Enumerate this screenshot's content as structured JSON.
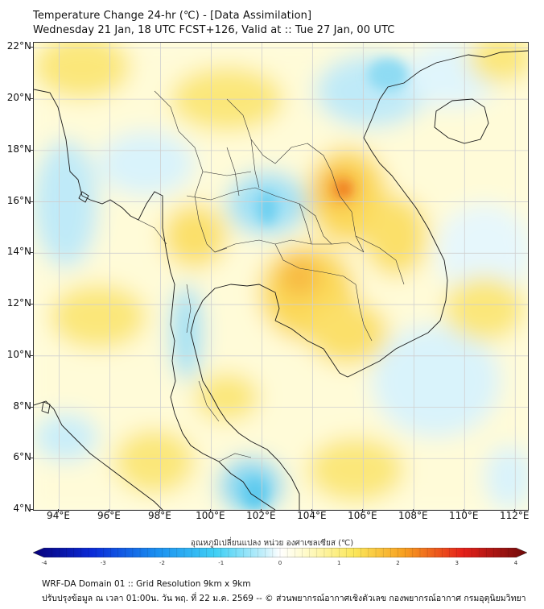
{
  "title": {
    "line1": "Temperature Change 24-hr (℃) - [Data Assimilation]",
    "line2": "Wednesday 21 Jan, 18 UTC FCST+126, Valid at :: Tue 27 Jan, 00 UTC"
  },
  "map": {
    "lat_labels": [
      "22°N",
      "20°N",
      "18°N",
      "16°N",
      "14°N",
      "12°N",
      "10°N",
      "8°N",
      "6°N",
      "4°N"
    ],
    "lon_labels": [
      "94°E",
      "96°E",
      "98°E",
      "100°E",
      "102°E",
      "104°E",
      "106°E",
      "108°E",
      "110°E",
      "112°E"
    ],
    "lat_range": [
      4,
      22.2
    ],
    "lon_range": [
      93,
      112.5
    ]
  },
  "colorbar": {
    "title": "อุณหภูมิเปลี่ยนแปลง หน่วย องศาเซลเซียส (℃)",
    "tick_labels": [
      "-4",
      "-3",
      "-2",
      "-1",
      "0",
      "1",
      "2",
      "3",
      "4"
    ],
    "range": [
      -4,
      4
    ]
  },
  "footer": {
    "line1": "WRF-DA Domain 01 :: Grid Resolution 9km x 9km",
    "line2": "ปรับปรุงข้อมูล ณ เวลา 01:00น. วัน พฤ. ที่ 22 ม.ค. 2569 -- © ส่วนพยากรณ์อากาศเชิงตัวเลข กองพยากรณ์อากาศ กรมอุตุนิยมวิทยา"
  }
}
